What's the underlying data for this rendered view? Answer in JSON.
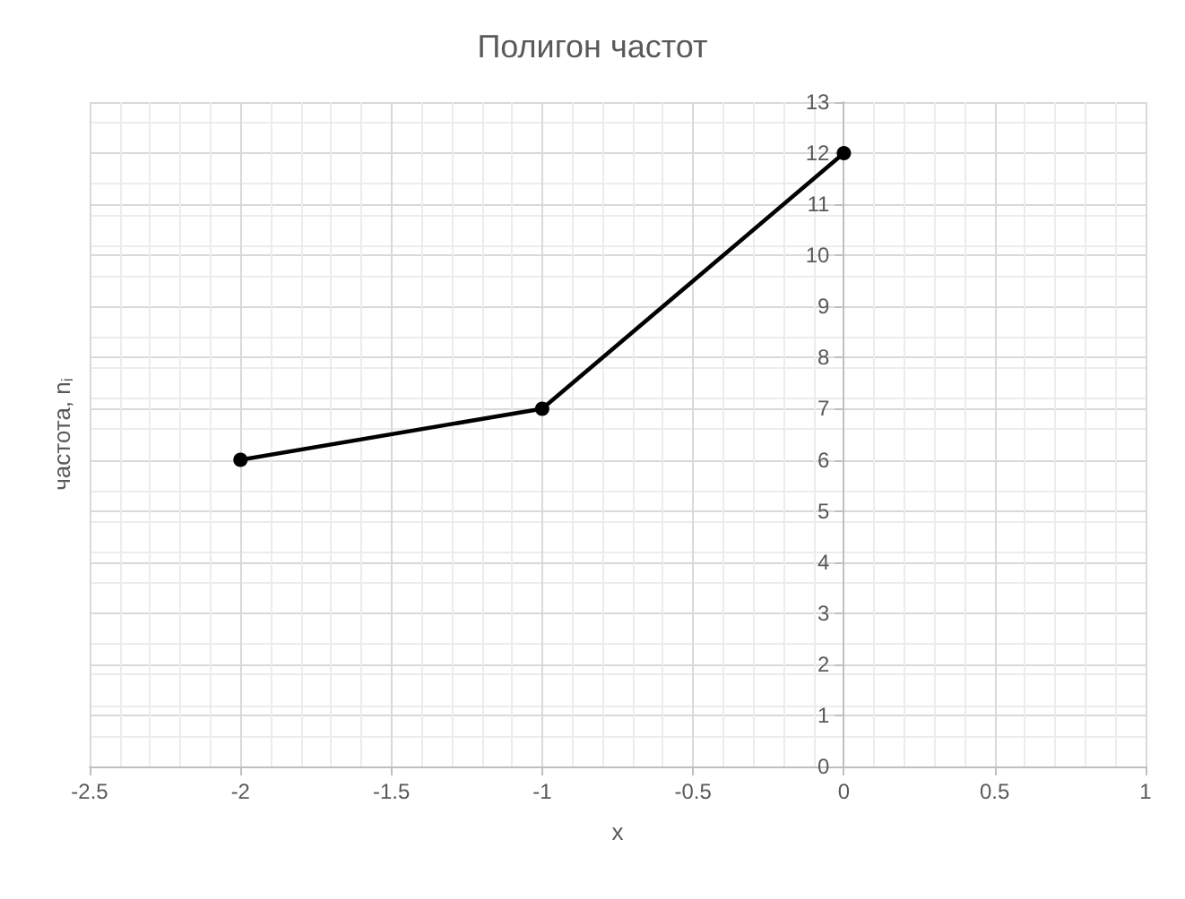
{
  "chart_data": {
    "type": "line",
    "title": "Полигон частот",
    "xlabel": "x",
    "ylabel": "частота, n$_{i}$",
    "x": [
      -2,
      -1,
      0
    ],
    "series": [
      {
        "color": "#000000",
        "values": [
          6,
          7,
          12
        ]
      }
    ],
    "xlim": [
      -2.5,
      1
    ],
    "xticks": [
      -2.5,
      -2,
      -1.5,
      -1,
      -0.5,
      0,
      0.5,
      1
    ],
    "ylim": [
      0,
      13
    ],
    "yticks": [
      0,
      1,
      2,
      3,
      4,
      5,
      6,
      7,
      8,
      9,
      10,
      11,
      12,
      13
    ],
    "grid": true,
    "marker": "circle",
    "line_style": "solid"
  }
}
